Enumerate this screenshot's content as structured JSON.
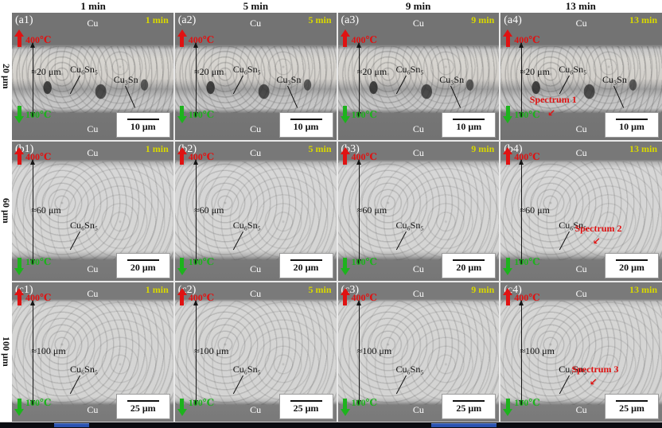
{
  "figure": {
    "column_headers": [
      "1 min",
      "5 min",
      "9 min",
      "13 min"
    ],
    "row_labels": [
      "20 μm",
      "60 μm",
      "100 μm"
    ]
  },
  "colors": {
    "time_label": "#d8d800",
    "hot": "#e01212",
    "cold": "#1db31d",
    "spectrum": "#e01212",
    "cu_gray": "#767676",
    "solder_light": "#d6d6d5"
  },
  "icons": {
    "hot_arrow": "up-arrow-icon",
    "cold_arrow": "down-arrow-icon",
    "spectrum_arrow": "down-left-arrow-icon"
  },
  "panels": [
    {
      "id": "(a1)",
      "row": "a",
      "time": "1 min",
      "cu_top": "Cu",
      "cu_bottom": "Cu",
      "temp_hot": "400℃",
      "temp_cold": "100℃",
      "thickness": "≈20 μm",
      "phase1": "Cu₆Sn₅",
      "phase2": "Cu₃Sn",
      "spectrum": "",
      "scale": "10 μm"
    },
    {
      "id": "(a2)",
      "row": "a",
      "time": "5 min",
      "cu_top": "Cu",
      "cu_bottom": "Cu",
      "temp_hot": "400℃",
      "temp_cold": "100℃",
      "thickness": "≈20 μm",
      "phase1": "Cu₆Sn₅",
      "phase2": "Cu₃Sn",
      "spectrum": "",
      "scale": "10 μm"
    },
    {
      "id": "(a3)",
      "row": "a",
      "time": "9 min",
      "cu_top": "Cu",
      "cu_bottom": "Cu",
      "temp_hot": "400℃",
      "temp_cold": "100℃",
      "thickness": "≈20 μm",
      "phase1": "Cu₆Sn₅",
      "phase2": "Cu₃Sn",
      "spectrum": "",
      "scale": "10 μm"
    },
    {
      "id": "(a4)",
      "row": "a",
      "time": "13 min",
      "cu_top": "Cu",
      "cu_bottom": "Cu",
      "temp_hot": "400℃",
      "temp_cold": "100℃",
      "thickness": "≈20 μm",
      "phase1": "Cu₆Sn₅",
      "phase2": "Cu₃Sn",
      "spectrum": "Spectrum 1",
      "scale": "10 μm"
    },
    {
      "id": "(b1)",
      "row": "b",
      "time": "1 min",
      "cu_top": "Cu",
      "cu_bottom": "Cu",
      "temp_hot": "400℃",
      "temp_cold": "100℃",
      "thickness": "≈60 μm",
      "phase1": "Cu₆Sn₅",
      "phase2": "",
      "spectrum": "",
      "scale": "20 μm"
    },
    {
      "id": "(b2)",
      "row": "b",
      "time": "5 min",
      "cu_top": "Cu",
      "cu_bottom": "Cu",
      "temp_hot": "400℃",
      "temp_cold": "100℃",
      "thickness": "≈60 μm",
      "phase1": "Cu₆Sn₅",
      "phase2": "",
      "spectrum": "",
      "scale": "20 μm"
    },
    {
      "id": "(b3)",
      "row": "b",
      "time": "9 min",
      "cu_top": "Cu",
      "cu_bottom": "Cu",
      "temp_hot": "400℃",
      "temp_cold": "100℃",
      "thickness": "≈60 μm",
      "phase1": "Cu₆Sn₅",
      "phase2": "",
      "spectrum": "",
      "scale": "20 μm"
    },
    {
      "id": "(b4)",
      "row": "b",
      "time": "13 min",
      "cu_top": "Cu",
      "cu_bottom": "Cu",
      "temp_hot": "400℃",
      "temp_cold": "100℃",
      "thickness": "≈60 μm",
      "phase1": "Cu₆Sn₅",
      "phase2": "",
      "spectrum": "Spectrum 2",
      "scale": "20 μm"
    },
    {
      "id": "(c1)",
      "row": "c",
      "time": "1 min",
      "cu_top": "Cu",
      "cu_bottom": "Cu",
      "temp_hot": "400℃",
      "temp_cold": "100℃",
      "thickness": "≈100 μm",
      "phase1": "Cu₆Sn₅",
      "phase2": "",
      "spectrum": "",
      "scale": "25 μm"
    },
    {
      "id": "(c2)",
      "row": "c",
      "time": "5 min",
      "cu_top": "Cu",
      "cu_bottom": "Cu",
      "temp_hot": "400℃",
      "temp_cold": "100℃",
      "thickness": "≈100 μm",
      "phase1": "Cu₆Sn₅",
      "phase2": "",
      "spectrum": "",
      "scale": "25 μm"
    },
    {
      "id": "(c3)",
      "row": "c",
      "time": "9 min",
      "cu_top": "Cu",
      "cu_bottom": "Cu",
      "temp_hot": "400℃",
      "temp_cold": "100℃",
      "thickness": "≈100 μm",
      "phase1": "Cu₆Sn₅",
      "phase2": "",
      "spectrum": "",
      "scale": "25 μm"
    },
    {
      "id": "(c4)",
      "row": "c",
      "time": "13 min",
      "cu_top": "Cu",
      "cu_bottom": "Cu",
      "temp_hot": "400℃",
      "temp_cold": "100℃",
      "thickness": "≈100 μm",
      "phase1": "Cu₆Sn₅",
      "phase2": "",
      "spectrum": "Spectrum 3",
      "scale": "25 μm"
    }
  ],
  "spectrum_arrow_glyph": "↙"
}
